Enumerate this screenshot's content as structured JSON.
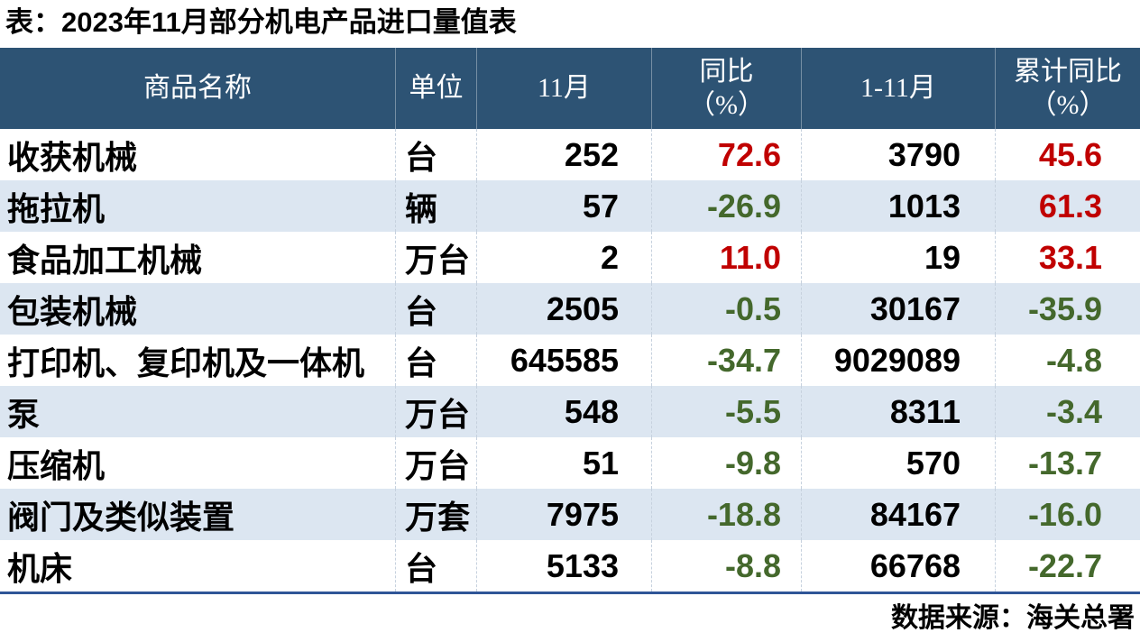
{
  "title": "表：2023年11月部分机电产品进口量值表",
  "source": "数据来源：海关总署",
  "colors": {
    "header_bg": "#2d5374",
    "stripe_bg": "#dce6f1",
    "positive_red": "#c00000",
    "negative_green": "#44682c",
    "bottom_border_blue": "#2f5597"
  },
  "chart_data": {
    "type": "table",
    "title": "表：2023年11月部分机电产品进口量值表",
    "columns": [
      {
        "label": "商品名称",
        "sub": ""
      },
      {
        "label": "单位",
        "sub": ""
      },
      {
        "label": "11月",
        "sub": ""
      },
      {
        "label": "同比",
        "sub": "（%）"
      },
      {
        "label": "1-11月",
        "sub": ""
      },
      {
        "label": "累计同比",
        "sub": "（%）"
      }
    ],
    "rows": [
      [
        "收获机械",
        "台",
        "252",
        "72.6",
        "3790",
        "45.6"
      ],
      [
        "拖拉机",
        "辆",
        "57",
        "-26.9",
        "1013",
        "61.3"
      ],
      [
        "食品加工机械",
        "万台",
        "2",
        "11.0",
        "19",
        "33.1"
      ],
      [
        "包装机械",
        "台",
        "2505",
        "-0.5",
        "30167",
        "-35.9"
      ],
      [
        "打印机、复印机及一体机",
        "台",
        "645585",
        "-34.7",
        "9029089",
        "-4.8"
      ],
      [
        "泵",
        "万台",
        "548",
        "-5.5",
        "8311",
        "-3.4"
      ],
      [
        "压缩机",
        "万台",
        "51",
        "-9.8",
        "570",
        "-13.7"
      ],
      [
        "阀门及类似装置",
        "万套",
        "7975",
        "-18.8",
        "84167",
        "-16.0"
      ],
      [
        "机床",
        "台",
        "5133",
        "-8.8",
        "66768",
        "-22.7"
      ]
    ],
    "value_color_rule": "percent columns: positive = red, negative = dark green",
    "source_note": "数据来源：海关总署"
  }
}
